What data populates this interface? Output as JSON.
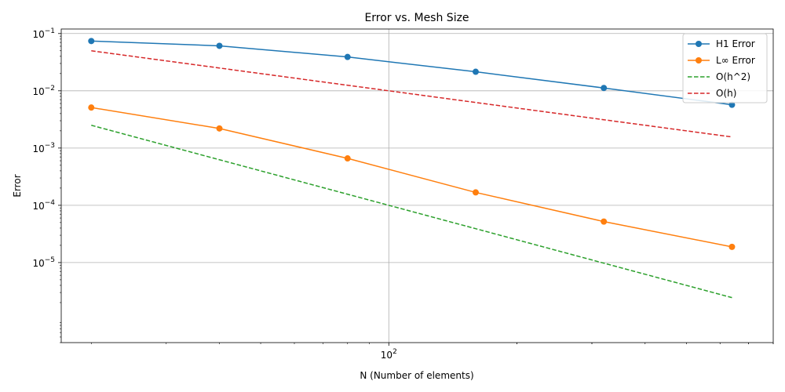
{
  "chart_data": {
    "type": "line",
    "title": "Error vs. Mesh Size",
    "xlabel": "N (Number of elements)",
    "ylabel": "Error",
    "xscale": "log",
    "yscale": "log",
    "xlim": [
      17,
      800
    ],
    "ylim": [
      4e-07,
      0.12
    ],
    "grid": true,
    "legend_position": "top-right",
    "x_tick_labels": [
      {
        "value": 100,
        "base": "10",
        "exp": "2"
      }
    ],
    "y_tick_labels": [
      {
        "value": 1e-05,
        "base": "10",
        "exp": "−5"
      },
      {
        "value": 0.0001,
        "base": "10",
        "exp": "−4"
      },
      {
        "value": 0.001,
        "base": "10",
        "exp": "−3"
      },
      {
        "value": 0.01,
        "base": "10",
        "exp": "−2"
      },
      {
        "value": 0.1,
        "base": "10",
        "exp": "−1"
      }
    ],
    "series": [
      {
        "name": "H1 Error",
        "color": "#1f77b4",
        "style": "solid",
        "marker": "circle",
        "x": [
          20,
          40,
          80,
          160,
          320,
          640
        ],
        "y": [
          0.074,
          0.061,
          0.039,
          0.0215,
          0.0112,
          0.0057
        ]
      },
      {
        "name": "L∞ Error",
        "color": "#ff7f0e",
        "style": "solid",
        "marker": "circle",
        "x": [
          20,
          40,
          80,
          160,
          320,
          640
        ],
        "y": [
          0.0051,
          0.0022,
          0.00066,
          0.000168,
          5.2e-05,
          1.88e-05
        ]
      },
      {
        "name": "O(h^2)",
        "color": "#2ca02c",
        "style": "dashed",
        "marker": "none",
        "x": [
          20,
          40,
          80,
          160,
          320,
          640
        ],
        "y": [
          0.0025,
          0.000625,
          0.00015625,
          3.90625e-05,
          9.7656e-06,
          2.4414e-06
        ]
      },
      {
        "name": "O(h)",
        "color": "#d62728",
        "style": "dashed",
        "marker": "none",
        "x": [
          20,
          40,
          80,
          160,
          320,
          640
        ],
        "y": [
          0.05,
          0.025,
          0.0125,
          0.00625,
          0.003125,
          0.0015625
        ]
      }
    ]
  }
}
